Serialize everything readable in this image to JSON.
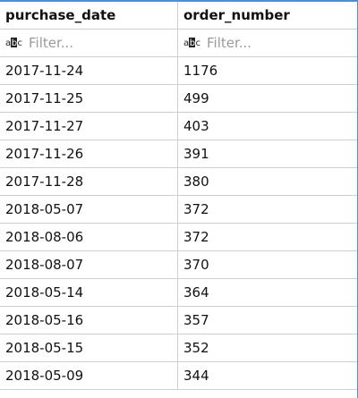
{
  "columns": [
    {
      "label": "purchase_date",
      "filter_placeholder": "Filter..."
    },
    {
      "label": "order_number",
      "filter_placeholder": "Filter..."
    }
  ],
  "filter_icon": "abc-text-filter-icon",
  "rows": [
    {
      "purchase_date": "2017-11-24",
      "order_number": "1176"
    },
    {
      "purchase_date": "2017-11-25",
      "order_number": "499"
    },
    {
      "purchase_date": "2017-11-27",
      "order_number": "403"
    },
    {
      "purchase_date": "2017-11-26",
      "order_number": "391"
    },
    {
      "purchase_date": "2017-11-28",
      "order_number": "380"
    },
    {
      "purchase_date": "2018-05-07",
      "order_number": "372"
    },
    {
      "purchase_date": "2018-08-06",
      "order_number": "372"
    },
    {
      "purchase_date": "2018-08-07",
      "order_number": "370"
    },
    {
      "purchase_date": "2018-05-14",
      "order_number": "364"
    },
    {
      "purchase_date": "2018-05-16",
      "order_number": "357"
    },
    {
      "purchase_date": "2018-05-15",
      "order_number": "352"
    },
    {
      "purchase_date": "2018-05-09",
      "order_number": "344"
    }
  ],
  "colors": {
    "accent": "#4a90d9",
    "gridline": "#cfcfcf",
    "placeholder": "#9a9a9a"
  }
}
